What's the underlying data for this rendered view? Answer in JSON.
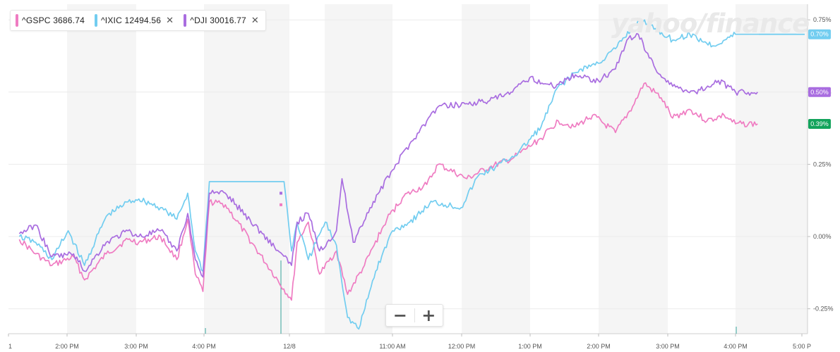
{
  "legend": [
    {
      "symbol": "^GSPC",
      "value": "3686.74",
      "color": "#ef7cc2",
      "closable": false
    },
    {
      "symbol": "^IXIC",
      "value": "12494.56",
      "color": "#72cdf0",
      "closable": true
    },
    {
      "symbol": "^DJI",
      "value": "30016.77",
      "color": "#a96de0",
      "closable": true
    }
  ],
  "watermark": "yahoo/finance",
  "zoom": {
    "minus": "−",
    "plus": "+"
  },
  "colors": {
    "gspc": "#ef7cc2",
    "ixic": "#72cdf0",
    "dji": "#a96de0",
    "last_green": "#13a35c",
    "grid": "#ececec",
    "band": "#f5f5f5"
  },
  "chart_data": {
    "type": "line",
    "x_tick_labels": [
      "1",
      "2:00 PM",
      "3:00 PM",
      "4:00 PM",
      "12/8",
      "11:00 AM",
      "12:00 PM",
      "1:00 PM",
      "2:00 PM",
      "3:00 PM",
      "4:00 PM",
      "5:00 P"
    ],
    "y_ticks": [
      -0.25,
      0,
      0.25,
      0.5,
      0.75
    ],
    "y_tick_labels": [
      "-0.25%",
      "0.00%",
      "0.25%",
      "0.50%",
      "0.75%"
    ],
    "ylim": [
      -0.32,
      0.78
    ],
    "series": [
      {
        "name": "^GSPC",
        "color": "#ef7cc2",
        "points": [
          [
            "12/7 13:10",
            -0.01
          ],
          [
            "12/7 13:25",
            -0.06
          ],
          [
            "12/7 13:40",
            -0.1
          ],
          [
            "12/7 14:00",
            -0.07
          ],
          [
            "12/7 14:10",
            -0.15
          ],
          [
            "12/7 14:30",
            -0.06
          ],
          [
            "12/7 14:50",
            -0.01
          ],
          [
            "12/7 15:00",
            -0.02
          ],
          [
            "12/7 15:20",
            0.0
          ],
          [
            "12/7 15:35",
            -0.08
          ],
          [
            "12/7 15:45",
            0.06
          ],
          [
            "12/7 15:52",
            -0.13
          ],
          [
            "12/7 15:59",
            -0.19
          ],
          [
            "12/7 16:05",
            0.12
          ],
          [
            "12/7 16:20",
            0.11
          ],
          [
            "12/8 09:30",
            -0.22
          ],
          [
            "12/8 09:35",
            -0.02
          ],
          [
            "12/8 09:45",
            0.05
          ],
          [
            "12/8 09:55",
            -0.13
          ],
          [
            "12/8 10:10",
            -0.05
          ],
          [
            "12/8 10:20",
            -0.2
          ],
          [
            "12/8 10:35",
            -0.1
          ],
          [
            "12/8 10:55",
            0.06
          ],
          [
            "12/8 11:10",
            0.14
          ],
          [
            "12/8 11:30",
            0.18
          ],
          [
            "12/8 11:40",
            0.25
          ],
          [
            "12/8 12:05",
            0.2
          ],
          [
            "12/8 12:25",
            0.24
          ],
          [
            "12/8 12:45",
            0.27
          ],
          [
            "12/8 13:10",
            0.34
          ],
          [
            "12/8 13:25",
            0.4
          ],
          [
            "12/8 13:40",
            0.38
          ],
          [
            "12/8 13:55",
            0.42
          ],
          [
            "12/8 14:15",
            0.36
          ],
          [
            "12/8 14:30",
            0.45
          ],
          [
            "12/8 14:40",
            0.53
          ],
          [
            "12/8 14:55",
            0.48
          ],
          [
            "12/8 15:05",
            0.41
          ],
          [
            "12/8 15:20",
            0.44
          ],
          [
            "12/8 15:35",
            0.4
          ],
          [
            "12/8 15:50",
            0.42
          ],
          [
            "12/8 16:00",
            0.39
          ],
          [
            "12/8 16:20",
            0.39
          ]
        ]
      },
      {
        "name": "^IXIC",
        "color": "#72cdf0",
        "points": [
          [
            "12/7 13:10",
            0.0
          ],
          [
            "12/7 13:25",
            -0.02
          ],
          [
            "12/7 13:40",
            -0.08
          ],
          [
            "12/7 13:55",
            0.02
          ],
          [
            "12/7 14:10",
            -0.1
          ],
          [
            "12/7 14:30",
            0.07
          ],
          [
            "12/7 14:50",
            0.12
          ],
          [
            "12/7 15:00",
            0.13
          ],
          [
            "12/7 15:20",
            0.1
          ],
          [
            "12/7 15:35",
            0.06
          ],
          [
            "12/7 15:45",
            0.15
          ],
          [
            "12/7 15:52",
            -0.05
          ],
          [
            "12/7 15:59",
            -0.12
          ],
          [
            "12/7 16:05",
            0.19
          ],
          [
            "12/7 17:15",
            0.19
          ],
          [
            "12/8 09:30",
            -0.05
          ],
          [
            "12/8 09:35",
            0.05
          ],
          [
            "12/8 09:45",
            -0.08
          ],
          [
            "12/8 10:00",
            0.05
          ],
          [
            "12/8 10:10",
            -0.03
          ],
          [
            "12/8 10:20",
            -0.28
          ],
          [
            "12/8 10:30",
            -0.32
          ],
          [
            "12/8 10:45",
            -0.12
          ],
          [
            "12/8 11:00",
            0.02
          ],
          [
            "12/8 11:15",
            0.05
          ],
          [
            "12/8 11:35",
            0.12
          ],
          [
            "12/8 12:00",
            0.1
          ],
          [
            "12/8 12:15",
            0.21
          ],
          [
            "12/8 12:30",
            0.24
          ],
          [
            "12/8 12:50",
            0.29
          ],
          [
            "12/8 13:10",
            0.38
          ],
          [
            "12/8 13:25",
            0.52
          ],
          [
            "12/8 13:45",
            0.58
          ],
          [
            "12/8 14:00",
            0.6
          ],
          [
            "12/8 14:15",
            0.65
          ],
          [
            "12/8 14:35",
            0.75
          ],
          [
            "12/8 14:50",
            0.72
          ],
          [
            "12/8 15:05",
            0.68
          ],
          [
            "12/8 15:20",
            0.7
          ],
          [
            "12/8 15:40",
            0.66
          ],
          [
            "12/8 16:00",
            0.7
          ],
          [
            "12/8 16:55",
            0.7
          ]
        ]
      },
      {
        "name": "^DJI",
        "color": "#a96de0",
        "points": [
          [
            "12/7 13:10",
            0.01
          ],
          [
            "12/7 13:25",
            0.04
          ],
          [
            "12/7 13:40",
            -0.07
          ],
          [
            "12/7 14:00",
            -0.06
          ],
          [
            "12/7 14:10",
            -0.12
          ],
          [
            "12/7 14:30",
            -0.02
          ],
          [
            "12/7 14:50",
            0.02
          ],
          [
            "12/7 15:00",
            0.0
          ],
          [
            "12/7 15:20",
            0.02
          ],
          [
            "12/7 15:35",
            -0.05
          ],
          [
            "12/7 15:45",
            0.08
          ],
          [
            "12/7 15:52",
            -0.08
          ],
          [
            "12/7 15:59",
            -0.14
          ],
          [
            "12/7 16:05",
            0.15
          ],
          [
            "12/7 16:20",
            0.15
          ],
          [
            "12/8 09:30",
            -0.1
          ],
          [
            "12/8 09:35",
            0.05
          ],
          [
            "12/8 09:45",
            0.08
          ],
          [
            "12/8 09:55",
            -0.05
          ],
          [
            "12/8 10:10",
            0.02
          ],
          [
            "12/8 10:15",
            0.2
          ],
          [
            "12/8 10:25",
            -0.02
          ],
          [
            "12/8 10:40",
            0.1
          ],
          [
            "12/8 11:00",
            0.23
          ],
          [
            "12/8 11:15",
            0.32
          ],
          [
            "12/8 11:30",
            0.4
          ],
          [
            "12/8 11:40",
            0.45
          ],
          [
            "12/8 12:05",
            0.46
          ],
          [
            "12/8 12:25",
            0.47
          ],
          [
            "12/8 12:45",
            0.5
          ],
          [
            "12/8 13:00",
            0.55
          ],
          [
            "12/8 13:20",
            0.52
          ],
          [
            "12/8 13:40",
            0.56
          ],
          [
            "12/8 14:00",
            0.54
          ],
          [
            "12/8 14:15",
            0.58
          ],
          [
            "12/8 14:25",
            0.68
          ],
          [
            "12/8 14:35",
            0.7
          ],
          [
            "12/8 14:50",
            0.58
          ],
          [
            "12/8 15:05",
            0.52
          ],
          [
            "12/8 15:25",
            0.5
          ],
          [
            "12/8 15:45",
            0.54
          ],
          [
            "12/8 16:00",
            0.5
          ],
          [
            "12/8 16:20",
            0.5
          ]
        ]
      }
    ],
    "last_labels": [
      {
        "series": "^IXIC",
        "value": 0.7,
        "text": "0.70%",
        "color": "#72cdf0"
      },
      {
        "series": "^DJI",
        "value": 0.5,
        "text": "0.50%",
        "color": "#a96de0"
      },
      {
        "series": "^GSPC",
        "value": 0.39,
        "text": "0.39%",
        "color": "#13a35c"
      }
    ],
    "after_hours_marks": [
      {
        "series": "^DJI",
        "value": 0.15
      },
      {
        "series": "^GSPC",
        "value": 0.11
      }
    ],
    "grid": true,
    "alternating_hour_bands": true
  }
}
